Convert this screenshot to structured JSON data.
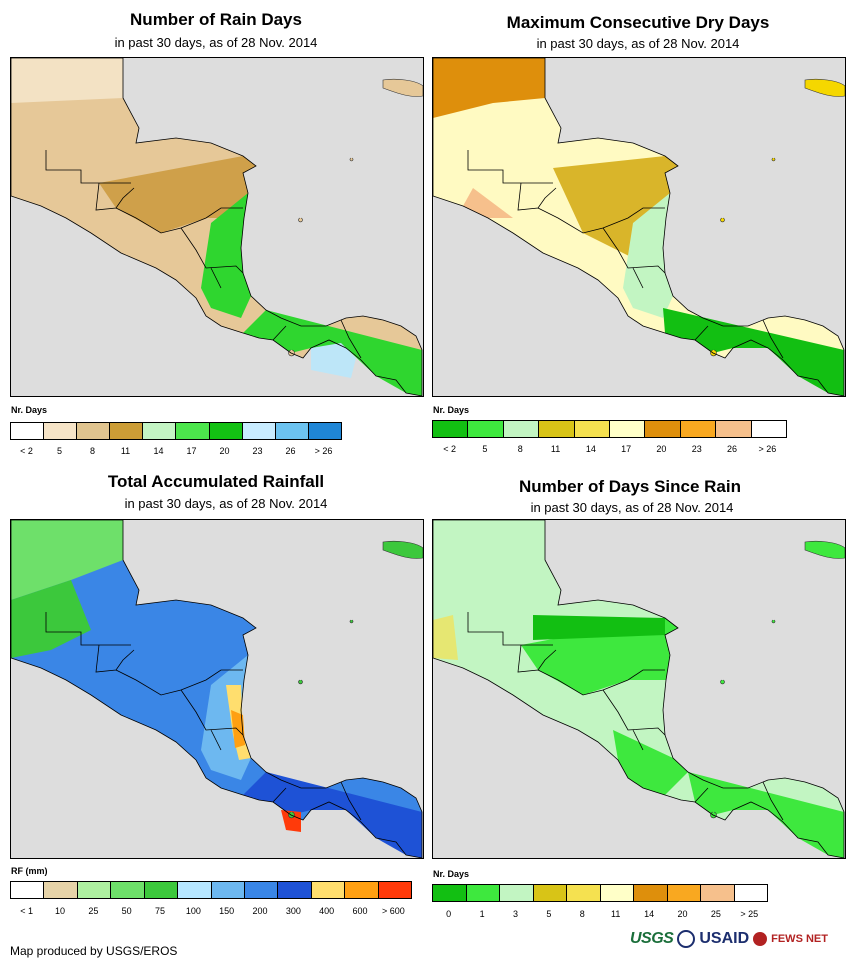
{
  "panels": [
    {
      "title": "Number of Rain Days",
      "subtitle": "in past 30 days, as of 28 Nov. 2014",
      "legend_title": "Nr. Days",
      "legend_colors": [
        "#ffffff",
        "#f6e4c7",
        "#e0c48f",
        "#cc9d36",
        "#c4f5c4",
        "#4ce64c",
        "#13c113",
        "#c8ecff",
        "#6cc3f0",
        "#1f86d6"
      ],
      "tick_labels": [
        "< 2",
        "5",
        "8",
        "11",
        "14",
        "17",
        "20",
        "23",
        "26",
        "> 26"
      ]
    },
    {
      "title": "Maximum Consecutive Dry Days",
      "subtitle": "in past 30 days, as of 28 Nov. 2014",
      "legend_title": "Nr. Days",
      "legend_colors": [
        "#12bf12",
        "#3ee83e",
        "#c2f5c2",
        "#d8c417",
        "#f5e150",
        "#ffffc8",
        "#de8f0c",
        "#f9a820",
        "#f6c08c",
        "#ffffff"
      ],
      "tick_labels": [
        "< 2",
        "5",
        "8",
        "11",
        "14",
        "17",
        "20",
        "23",
        "26",
        "> 26"
      ]
    },
    {
      "title": "Total Accumulated Rainfall",
      "subtitle": "in past 30 days, as of 28 Nov. 2014",
      "legend_title": "RF (mm)",
      "legend_colors": [
        "#ffffff",
        "#e6d3a8",
        "#aef0a0",
        "#6ee06a",
        "#3cc83c",
        "#b6e6ff",
        "#6db8f0",
        "#3a86e6",
        "#1e52d6",
        "#ffde6e",
        "#ffa012",
        "#ff3a0a"
      ],
      "tick_labels": [
        "< 1",
        "10",
        "25",
        "50",
        "75",
        "100",
        "150",
        "200",
        "300",
        "400",
        "600",
        "> 600"
      ]
    },
    {
      "title": "Number of Days Since Rain",
      "subtitle": "in past 30 days, as of 28 Nov. 2014",
      "legend_title": "Nr. Days",
      "legend_colors": [
        "#12bf12",
        "#3ee83e",
        "#c2f5c2",
        "#d8c417",
        "#f5e150",
        "#ffffc8",
        "#de8f0c",
        "#f9a820",
        "#f6c08c",
        "#ffffff"
      ],
      "tick_labels": [
        "0",
        "1",
        "3",
        "5",
        "8",
        "11",
        "14",
        "20",
        "25",
        "> 25"
      ]
    }
  ],
  "footer": "Map produced by USGS/EROS",
  "logos": {
    "usgs": "USGS",
    "usaid": "USAID",
    "fews": "FEWS NET"
  }
}
